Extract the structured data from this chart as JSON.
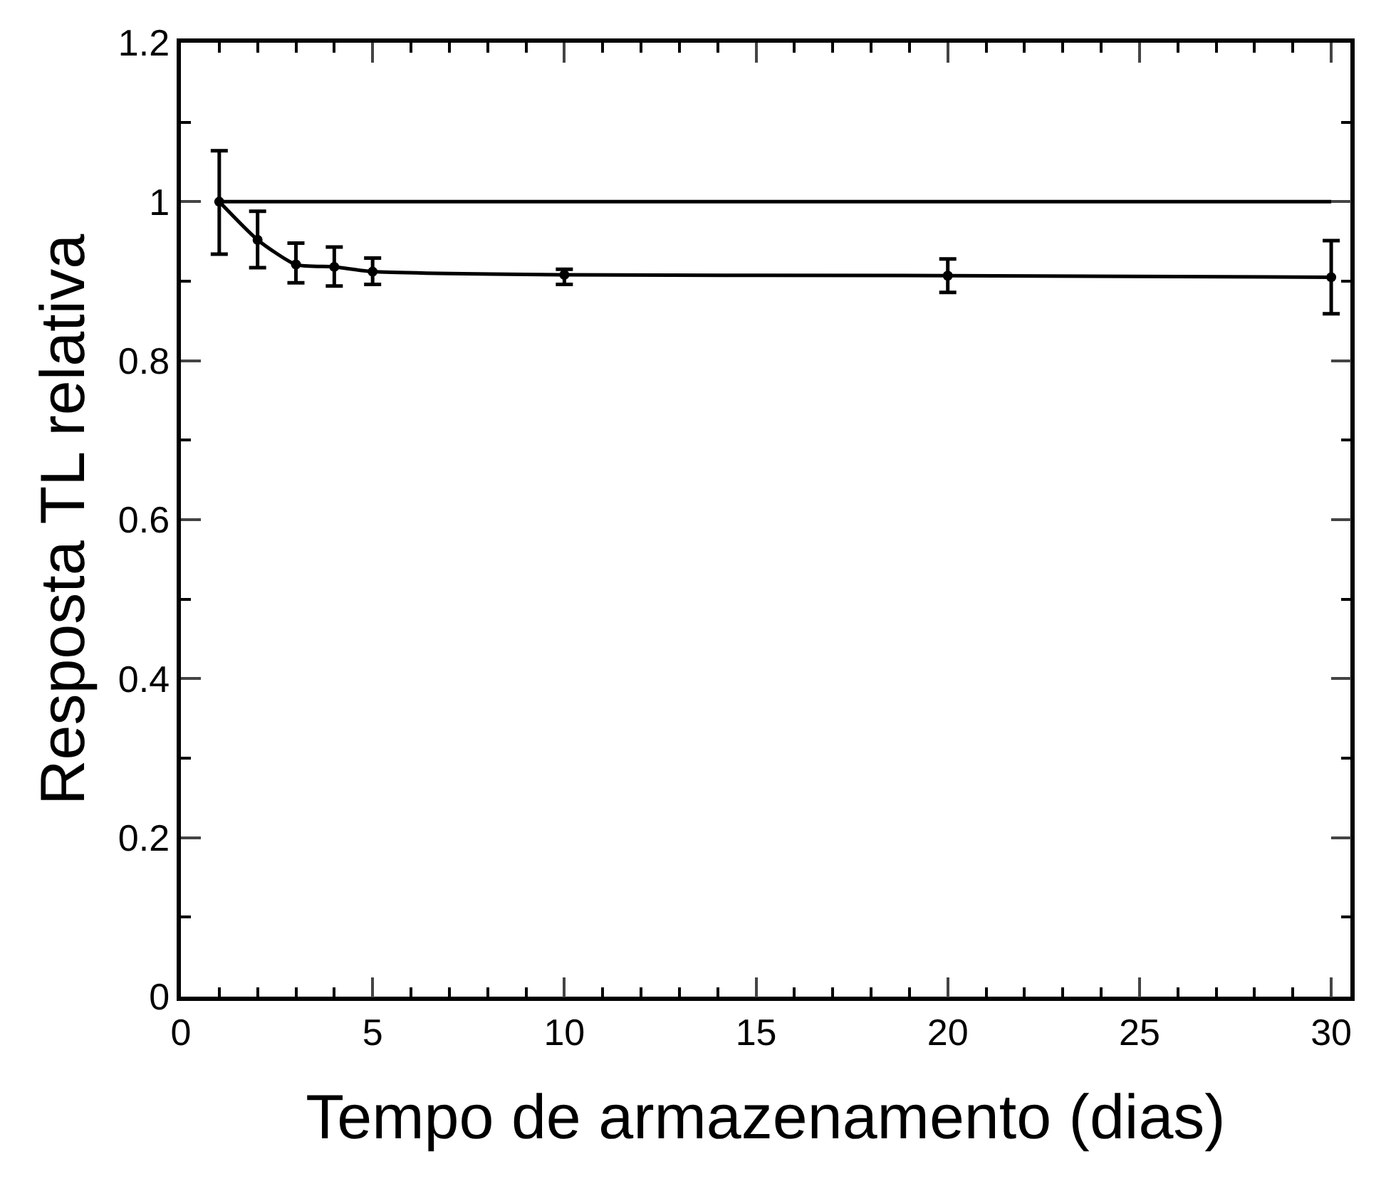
{
  "chart_data": {
    "type": "line",
    "xlabel": "Tempo de armazenamento (dias)",
    "ylabel": "Resposta TL relativa",
    "xlim": [
      0,
      30.5
    ],
    "xticks": [
      0,
      5,
      10,
      15,
      20,
      25,
      30
    ],
    "ylim": [
      0,
      1.2
    ],
    "yticks": [
      0,
      0.2,
      0.4,
      0.6,
      0.8,
      1,
      1.2
    ],
    "series": [
      {
        "color": "#000000",
        "x": [
          1,
          30
        ],
        "values": [
          1.0,
          1.0
        ],
        "line_style": "solid"
      },
      {
        "color": "#000000",
        "x": [
          1,
          2,
          3,
          4,
          5,
          10,
          20,
          30
        ],
        "values": [
          1.0,
          0.952,
          0.921,
          0.918,
          0.912,
          0.908,
          0.907,
          0.905
        ],
        "errors": [
          [
            0.934,
            1.064
          ],
          [
            0.917,
            0.988
          ],
          [
            0.898,
            0.948
          ],
          [
            0.894,
            0.943
          ],
          [
            0.896,
            0.929
          ],
          [
            0.896,
            0.915
          ],
          [
            0.886,
            0.928
          ],
          [
            0.859,
            0.951
          ]
        ],
        "marker": "circle",
        "line_style": "solid"
      }
    ]
  }
}
